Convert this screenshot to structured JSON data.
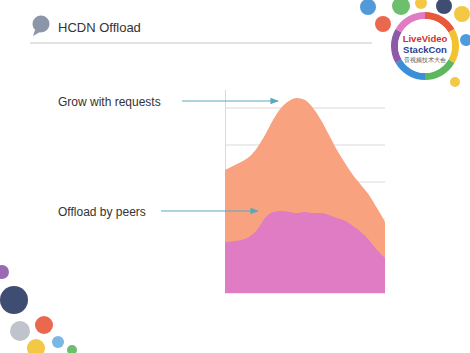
{
  "chart_data": {
    "type": "area",
    "title": "HCDN Offload",
    "x": [
      0,
      1,
      2,
      3,
      4,
      5,
      6,
      7,
      8,
      9,
      10,
      11,
      12,
      13,
      14,
      15,
      16,
      17,
      18,
      19,
      20
    ],
    "xlim": [
      0,
      20
    ],
    "ylim": [
      0,
      110
    ],
    "yticks": [
      0,
      20,
      40,
      60,
      80,
      100
    ],
    "grid": true,
    "tick_labels": false,
    "stacked": false,
    "series": [
      {
        "name": "Grow with requests",
        "color": "#f8a27f",
        "values": [
          66.5,
          68.6,
          70.8,
          73.5,
          78.4,
          85.4,
          93.5,
          100,
          103.8,
          105.4,
          104.3,
          100,
          93.5,
          85.4,
          77.3,
          70.3,
          63.8,
          58.4,
          53,
          45.9,
          38.4
        ]
      },
      {
        "name": "Offload by peers",
        "color": "#e07cc4",
        "values": [
          27.6,
          28,
          28.6,
          30.3,
          34,
          40.5,
          43.8,
          44.3,
          43.8,
          43.2,
          43.8,
          43.2,
          43.2,
          42.2,
          40.5,
          39,
          36.2,
          33,
          28.6,
          23.2,
          18.9
        ]
      }
    ]
  },
  "logo": {
    "lines": [
      "LiveVideo",
      "StackCon"
    ],
    "subtitle": "音视频技术大会"
  }
}
